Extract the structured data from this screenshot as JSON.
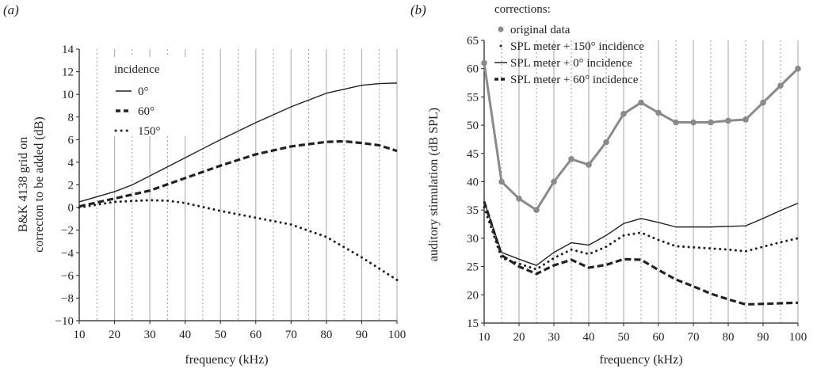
{
  "chart_data": [
    {
      "type": "line",
      "panel_label": "(a)",
      "xlabel": "frequency (kHz)",
      "ylabel_lines": [
        "B&K 4138 grid on",
        "correcton to be added (dB)"
      ],
      "xlim": [
        10,
        100
      ],
      "ylim": [
        -10,
        14
      ],
      "x_ticks": [
        10,
        20,
        30,
        40,
        50,
        60,
        70,
        80,
        90,
        100
      ],
      "y_ticks": [
        -10,
        -8,
        -6,
        -4,
        -2,
        0,
        2,
        4,
        6,
        8,
        10,
        12,
        14
      ],
      "grid": "vertical",
      "legend": {
        "title": "incidence",
        "position": "top-left"
      },
      "series": [
        {
          "name": "0°",
          "style": "solid",
          "x": [
            10,
            20,
            25,
            30,
            40,
            50,
            60,
            70,
            80,
            90,
            95,
            100
          ],
          "y": [
            0.5,
            1.4,
            2.0,
            2.8,
            4.4,
            6.0,
            7.5,
            8.9,
            10.1,
            10.8,
            10.95,
            11.0
          ]
        },
        {
          "name": "60°",
          "style": "dashed",
          "x": [
            10,
            20,
            30,
            40,
            50,
            60,
            70,
            80,
            85,
            90,
            95,
            100
          ],
          "y": [
            0.1,
            0.8,
            1.5,
            2.6,
            3.7,
            4.7,
            5.4,
            5.8,
            5.85,
            5.7,
            5.5,
            5.0
          ]
        },
        {
          "name": "150°",
          "style": "dotted",
          "x": [
            10,
            20,
            30,
            35,
            40,
            50,
            60,
            70,
            80,
            90,
            100
          ],
          "y": [
            0.0,
            0.5,
            0.65,
            0.6,
            0.4,
            -0.3,
            -0.9,
            -1.5,
            -2.6,
            -4.4,
            -6.4
          ]
        }
      ]
    },
    {
      "type": "line",
      "panel_label": "(b)",
      "xlabel": "frequency (kHz)",
      "ylabel": "auditory stimulation (dB SPL)",
      "xlim": [
        10,
        100
      ],
      "ylim": [
        15,
        65
      ],
      "x_ticks": [
        10,
        20,
        30,
        40,
        50,
        60,
        70,
        80,
        90,
        100
      ],
      "y_ticks": [
        15,
        20,
        25,
        30,
        35,
        40,
        45,
        50,
        55,
        60,
        65
      ],
      "grid": "vertical",
      "legend": {
        "title": "corrections:",
        "position": "top-left"
      },
      "x": [
        10,
        15,
        20,
        25,
        30,
        35,
        40,
        45,
        50,
        55,
        60,
        65,
        70,
        75,
        80,
        85,
        90,
        95,
        100
      ],
      "series": [
        {
          "name": "original data",
          "style": "markers",
          "y": [
            61,
            40,
            37,
            35,
            40,
            44,
            43,
            47,
            52,
            54,
            52.2,
            50.5,
            50.5,
            50.5,
            50.8,
            51,
            54,
            57,
            60
          ]
        },
        {
          "name": "SPL meter + 150° incidence",
          "style": "dotted",
          "y": [
            35.5,
            26.5,
            25.5,
            24.5,
            26.5,
            28,
            27.2,
            28.5,
            30.5,
            31,
            29.7,
            28.6,
            28.4,
            28.2,
            28,
            27.7,
            28.5,
            29.3,
            30
          ]
        },
        {
          "name": "SPL meter + 0° incidence",
          "style": "solid",
          "y": [
            36.5,
            27.5,
            26.3,
            25.2,
            27.5,
            29.2,
            28.8,
            30.5,
            32.6,
            33.5,
            32.8,
            32,
            32,
            32,
            32.1,
            32.2,
            33.5,
            34.9,
            36.2
          ]
        },
        {
          "name": "SPL meter + 60° incidence",
          "style": "dashed",
          "y": [
            36.5,
            27,
            25,
            23.7,
            25.2,
            26.2,
            24.8,
            25.3,
            26.3,
            26.2,
            24.4,
            22.7,
            21.5,
            20.2,
            19.2,
            18.3,
            18.4,
            18.5,
            18.6
          ]
        }
      ]
    }
  ]
}
